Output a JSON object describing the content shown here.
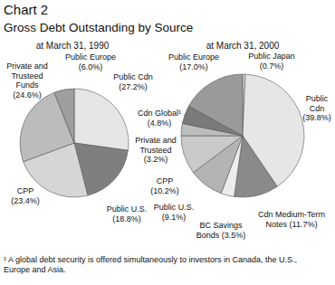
{
  "title": "Chart 2",
  "subtitle": "Gross Debt Outstanding by Source",
  "footnote": "¹ A global debt security is offered simultaneously to investors in Canada, the U.S., Europe and Asia.",
  "chart_data": [
    {
      "type": "pie",
      "title": "at March 31, 1990",
      "categories": [
        "Public Cdn",
        "Public U.S.",
        "CPP",
        "Private and Trusteed Funds",
        "Public Europe"
      ],
      "values": [
        27.2,
        18.8,
        23.4,
        24.6,
        6.0
      ],
      "value_labels": [
        "(27.2%)",
        "(18.8%)",
        "(23.4%)",
        "(24.6%)",
        "(6.0%)"
      ],
      "colors": [
        "#e6e6e6",
        "#7f7f7f",
        "#d6d6d6",
        "#bcbcbc",
        "#9e9e9e"
      ],
      "data_labels": true
    },
    {
      "type": "pie",
      "title": "at March 31, 2000",
      "categories": [
        "Public Japan",
        "Public Cdn",
        "Cdn Medium-Term Notes",
        "BC Savings Bonds",
        "Public U.S.",
        "CPP",
        "Private and Trusteed",
        "Cdn Global¹",
        "Public Europe"
      ],
      "values": [
        0.7,
        39.8,
        11.7,
        3.5,
        9.1,
        10.2,
        3.2,
        4.8,
        17.0
      ],
      "value_labels": [
        "(0.7%)",
        "(39.8%)",
        "(11.7%)",
        "(3.5%)",
        "(9.1%)",
        "(10.2%)",
        "(3.2%)",
        "(4.8%)",
        "(17.0%)"
      ],
      "colors": [
        "#dedede",
        "#e6e6e6",
        "#8a8a8a",
        "#ececec",
        "#b4b4b4",
        "#cacaca",
        "#bdbdbd",
        "#7a7a7a",
        "#9a9a9a"
      ],
      "data_labels": true
    }
  ]
}
